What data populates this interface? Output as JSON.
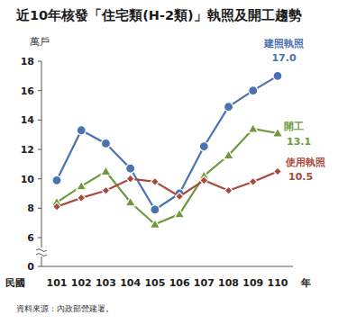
{
  "chart_data": {
    "type": "line",
    "title": "近10年核發「住宅類(H-2類)」執照及開工趨勢",
    "y_label": "萬戶",
    "x_label_prefix": "民國",
    "x_label": "年",
    "source": "資料來源：內政部營建署。",
    "categories": [
      "101",
      "102",
      "103",
      "104",
      "105",
      "106",
      "107",
      "108",
      "109",
      "110"
    ],
    "series": [
      {
        "name": "建照執照",
        "color": "#4a72b0",
        "marker": "circle",
        "values": [
          9.9,
          13.3,
          12.4,
          10.7,
          7.9,
          9.0,
          12.2,
          14.9,
          16.0,
          17.0
        ],
        "value_labels": [
          null,
          null,
          null,
          null,
          null,
          null,
          null,
          null,
          null,
          "17.0"
        ]
      },
      {
        "name": "開工",
        "color": "#6f9a3c",
        "marker": "triangle",
        "values": [
          8.4,
          9.5,
          10.5,
          8.4,
          6.9,
          7.6,
          10.2,
          11.6,
          13.4,
          13.1
        ],
        "value_labels": [
          null,
          null,
          null,
          null,
          null,
          null,
          null,
          null,
          null,
          "13.1"
        ]
      },
      {
        "name": "使用執照",
        "color": "#a84a3c",
        "marker": "diamond",
        "values": [
          8.1,
          8.7,
          9.2,
          10.0,
          9.8,
          8.8,
          9.9,
          9.2,
          9.8,
          10.5
        ],
        "value_labels": [
          null,
          null,
          null,
          null,
          null,
          null,
          null,
          null,
          null,
          "10.5"
        ]
      }
    ],
    "ylim": [
      0,
      18
    ],
    "yticks": [
      0,
      6,
      8,
      10,
      12,
      14,
      16,
      18
    ],
    "grid": false
  }
}
